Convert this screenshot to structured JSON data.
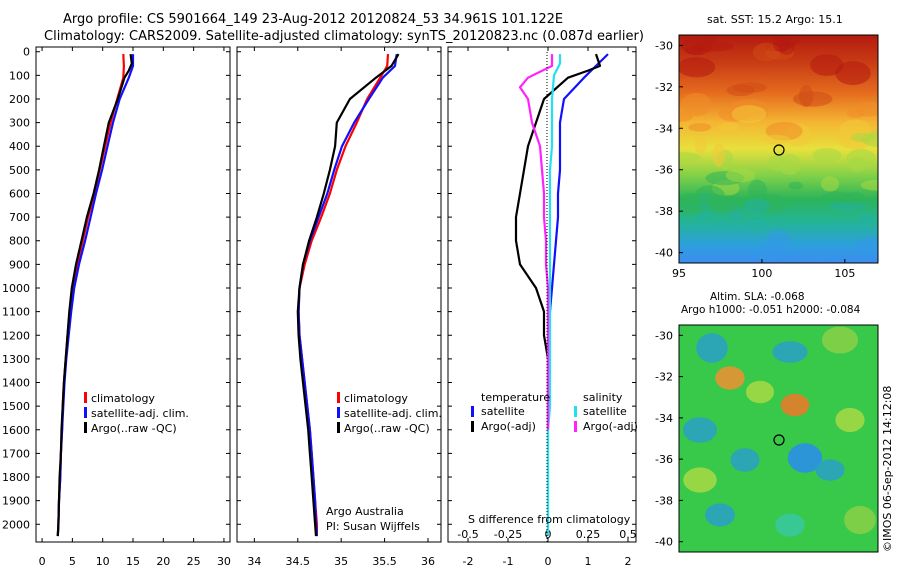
{
  "header": {
    "line1": "Argo profile: CS 5901664_149 23-Aug-2012 20120824_53 34.961S 101.122E",
    "line2": "Climatology: CARS2009. Satellite-adjusted climatology: synTS_20120823.nc (0.087d earlier)"
  },
  "colors": {
    "climatology": "#ff0000",
    "satellite": "#1010ff",
    "argo": "#000000",
    "argo_adj_salinity": "#ff22ff",
    "satellite_salinity": "#22e0f0"
  },
  "chart_data": [
    {
      "type": "line",
      "panel": "temperature",
      "xlim": [
        -1,
        31
      ],
      "ylim": [
        2075,
        -20
      ],
      "y_reversed": true,
      "x_ticks": [
        0,
        5,
        10,
        15,
        20,
        25,
        30
      ],
      "y_ticks": [
        0,
        100,
        200,
        300,
        400,
        500,
        600,
        700,
        800,
        900,
        1000,
        1100,
        1200,
        1300,
        1400,
        1500,
        1600,
        1700,
        1800,
        1900,
        2000
      ],
      "legend": [
        "climatology",
        "satellite-adj. clim.",
        "Argo(..raw -QC)"
      ],
      "series": [
        {
          "name": "climatology",
          "color": "#ff0000",
          "points": [
            [
              13.4,
              10
            ],
            [
              13.5,
              60
            ],
            [
              13.4,
              110
            ],
            [
              12.4,
              200
            ],
            [
              11.3,
              300
            ],
            [
              10.4,
              400
            ],
            [
              9.5,
              500
            ],
            [
              8.6,
              600
            ],
            [
              7.6,
              700
            ],
            [
              6.7,
              800
            ],
            [
              5.8,
              900
            ],
            [
              5.0,
              1000
            ],
            [
              4.6,
              1100
            ],
            [
              4.2,
              1200
            ],
            [
              3.9,
              1300
            ],
            [
              3.6,
              1400
            ],
            [
              3.4,
              1500
            ],
            [
              3.3,
              1600
            ],
            [
              3.1,
              1700
            ],
            [
              3.0,
              1800
            ],
            [
              2.8,
              1900
            ],
            [
              2.7,
              2000
            ],
            [
              2.6,
              2050
            ]
          ]
        },
        {
          "name": "satellite-adj. clim.",
          "color": "#1010ff",
          "points": [
            [
              15.0,
              10
            ],
            [
              15.0,
              60
            ],
            [
              14.3,
              110
            ],
            [
              12.8,
              200
            ],
            [
              11.7,
              300
            ],
            [
              10.8,
              400
            ],
            [
              9.9,
              500
            ],
            [
              8.9,
              600
            ],
            [
              8.0,
              700
            ],
            [
              7.1,
              800
            ],
            [
              6.1,
              900
            ],
            [
              5.3,
              1000
            ],
            [
              4.8,
              1100
            ],
            [
              4.4,
              1200
            ],
            [
              4.0,
              1300
            ],
            [
              3.7,
              1400
            ],
            [
              3.5,
              1500
            ],
            [
              3.3,
              1600
            ],
            [
              3.1,
              1700
            ],
            [
              3.0,
              1800
            ],
            [
              2.8,
              1900
            ],
            [
              2.7,
              2000
            ],
            [
              2.6,
              2050
            ]
          ]
        },
        {
          "name": "Argo(..raw -QC)",
          "color": "#000000",
          "points": [
            [
              14.6,
              10
            ],
            [
              14.8,
              50
            ],
            [
              14.3,
              80
            ],
            [
              13.6,
              110
            ],
            [
              12.5,
              200
            ],
            [
              11.0,
              300
            ],
            [
              10.2,
              400
            ],
            [
              9.4,
              500
            ],
            [
              8.5,
              600
            ],
            [
              7.4,
              700
            ],
            [
              6.5,
              800
            ],
            [
              5.6,
              900
            ],
            [
              4.9,
              1000
            ],
            [
              4.5,
              1100
            ],
            [
              4.2,
              1200
            ],
            [
              3.9,
              1300
            ],
            [
              3.6,
              1400
            ],
            [
              3.4,
              1500
            ],
            [
              3.2,
              1600
            ],
            [
              3.1,
              1700
            ],
            [
              2.9,
              1800
            ],
            [
              2.8,
              1900
            ],
            [
              2.7,
              2000
            ],
            [
              2.6,
              2050
            ]
          ]
        }
      ]
    },
    {
      "type": "line",
      "panel": "salinity",
      "xlim": [
        33.8,
        36.15
      ],
      "ylim": [
        2075,
        -20
      ],
      "y_reversed": true,
      "x_ticks": [
        34,
        34.5,
        35,
        35.5,
        36
      ],
      "legend": [
        "climatology",
        "satellite-adj. clim.",
        "Argo(..raw -QC)"
      ],
      "annotation": [
        "Argo Australia",
        "PI: Susan Wijffels"
      ],
      "series": [
        {
          "name": "climatology",
          "color": "#ff0000",
          "points": [
            [
              35.54,
              10
            ],
            [
              35.53,
              60
            ],
            [
              35.45,
              110
            ],
            [
              35.3,
              200
            ],
            [
              35.18,
              300
            ],
            [
              35.05,
              400
            ],
            [
              34.95,
              500
            ],
            [
              34.87,
              600
            ],
            [
              34.77,
              700
            ],
            [
              34.66,
              800
            ],
            [
              34.58,
              900
            ],
            [
              34.52,
              1000
            ],
            [
              34.51,
              1100
            ],
            [
              34.52,
              1200
            ],
            [
              34.55,
              1300
            ],
            [
              34.58,
              1400
            ],
            [
              34.61,
              1500
            ],
            [
              34.64,
              1600
            ],
            [
              34.66,
              1700
            ],
            [
              34.68,
              1800
            ],
            [
              34.7,
              1900
            ],
            [
              34.72,
              2000
            ],
            [
              34.72,
              2050
            ]
          ]
        },
        {
          "name": "satellite-adj. clim.",
          "color": "#1010ff",
          "points": [
            [
              35.64,
              10
            ],
            [
              35.62,
              60
            ],
            [
              35.48,
              110
            ],
            [
              35.32,
              200
            ],
            [
              35.15,
              300
            ],
            [
              35.01,
              400
            ],
            [
              34.92,
              500
            ],
            [
              34.84,
              600
            ],
            [
              34.74,
              700
            ],
            [
              34.64,
              800
            ],
            [
              34.56,
              900
            ],
            [
              34.52,
              1000
            ],
            [
              34.51,
              1100
            ],
            [
              34.52,
              1200
            ],
            [
              34.55,
              1300
            ],
            [
              34.58,
              1400
            ],
            [
              34.61,
              1500
            ],
            [
              34.64,
              1600
            ],
            [
              34.66,
              1700
            ],
            [
              34.68,
              1800
            ],
            [
              34.7,
              1900
            ],
            [
              34.71,
              2000
            ],
            [
              34.72,
              2050
            ]
          ]
        },
        {
          "name": "Argo(..raw -QC)",
          "color": "#000000",
          "points": [
            [
              35.66,
              10
            ],
            [
              35.58,
              60
            ],
            [
              35.4,
              110
            ],
            [
              35.1,
              200
            ],
            [
              34.95,
              300
            ],
            [
              34.93,
              400
            ],
            [
              34.87,
              500
            ],
            [
              34.8,
              600
            ],
            [
              34.72,
              700
            ],
            [
              34.63,
              800
            ],
            [
              34.56,
              900
            ],
            [
              34.52,
              1000
            ],
            [
              34.5,
              1100
            ],
            [
              34.51,
              1200
            ],
            [
              34.53,
              1300
            ],
            [
              34.56,
              1400
            ],
            [
              34.59,
              1500
            ],
            [
              34.62,
              1600
            ],
            [
              34.64,
              1700
            ],
            [
              34.66,
              1800
            ],
            [
              34.68,
              1900
            ],
            [
              34.7,
              2000
            ],
            [
              34.71,
              2050
            ]
          ]
        }
      ]
    },
    {
      "type": "line",
      "panel": "difference",
      "xlim": [
        -2.5,
        2.2
      ],
      "ylim": [
        2075,
        -20
      ],
      "y_reversed": true,
      "x_ticks": [
        -2,
        -1,
        0,
        1,
        2
      ],
      "x_ticks_top": [
        -0.5,
        -0.25,
        0,
        0.25,
        0.5
      ],
      "xlabel_top": "S difference from climatology",
      "legend_temperature": {
        "title": "temperature",
        "items": [
          "satellite",
          "Argo(-adj)"
        ]
      },
      "legend_salinity": {
        "title": "salinity",
        "items": [
          "satellite",
          "Argo(-adj)"
        ]
      },
      "series": [
        {
          "name": "temperature satellite",
          "color": "#1010ff",
          "points": [
            [
              1.5,
              10
            ],
            [
              1.2,
              60
            ],
            [
              0.9,
              110
            ],
            [
              0.4,
              200
            ],
            [
              0.3,
              300
            ],
            [
              0.3,
              400
            ],
            [
              0.3,
              500
            ],
            [
              0.25,
              600
            ],
            [
              0.25,
              700
            ],
            [
              0.2,
              800
            ],
            [
              0.15,
              900
            ],
            [
              0.1,
              1000
            ],
            [
              0.05,
              1100
            ],
            [
              0,
              1200
            ]
          ]
        },
        {
          "name": "temperature Argo(-adj)",
          "color": "#000000",
          "points": [
            [
              1.2,
              10
            ],
            [
              1.3,
              60
            ],
            [
              1.0,
              80
            ],
            [
              0.5,
              110
            ],
            [
              -0.1,
              200
            ],
            [
              -0.3,
              300
            ],
            [
              -0.5,
              400
            ],
            [
              -0.6,
              500
            ],
            [
              -0.7,
              600
            ],
            [
              -0.8,
              700
            ],
            [
              -0.8,
              800
            ],
            [
              -0.7,
              900
            ],
            [
              -0.3,
              1000
            ],
            [
              -0.1,
              1100
            ],
            [
              -0.1,
              1200
            ],
            [
              0,
              1300
            ],
            [
              0,
              1400
            ],
            [
              0,
              1500
            ],
            [
              0,
              1600
            ]
          ]
        },
        {
          "name": "salinity satellite",
          "color": "#22e0f0",
          "points": [
            [
              0.3,
              10
            ],
            [
              0.3,
              50
            ],
            [
              0.15,
              100
            ],
            [
              0.1,
              200
            ],
            [
              0.1,
              300
            ],
            [
              0.1,
              400
            ],
            [
              0.05,
              500
            ],
            [
              0.05,
              600
            ],
            [
              0.05,
              700
            ],
            [
              0.05,
              800
            ],
            [
              0.05,
              900
            ],
            [
              0.05,
              1000
            ],
            [
              0.05,
              1100
            ],
            [
              0.05,
              1200
            ],
            [
              0.05,
              1300
            ],
            [
              0.05,
              1400
            ],
            [
              0.05,
              1500
            ],
            [
              0,
              1600
            ],
            [
              0,
              1700
            ],
            [
              0,
              1800
            ],
            [
              0,
              1900
            ],
            [
              0,
              2000
            ],
            [
              0,
              2050
            ]
          ]
        },
        {
          "name": "salinity Argo(-adj)",
          "color": "#ff22ff",
          "points": [
            [
              0.1,
              10
            ],
            [
              0.1,
              60
            ],
            [
              -0.5,
              110
            ],
            [
              -0.7,
              150
            ],
            [
              -0.5,
              200
            ],
            [
              -0.4,
              300
            ],
            [
              -0.2,
              400
            ],
            [
              -0.15,
              500
            ],
            [
              -0.1,
              600
            ],
            [
              -0.1,
              700
            ],
            [
              -0.05,
              800
            ],
            [
              -0.05,
              900
            ],
            [
              0,
              1000
            ],
            [
              0,
              1100
            ],
            [
              0,
              1200
            ],
            [
              0,
              1300
            ],
            [
              0,
              1400
            ],
            [
              0,
              1500
            ],
            [
              0,
              1600
            ]
          ]
        }
      ]
    },
    {
      "type": "heatmap",
      "panel": "sst_map",
      "title": "sat. SST: 15.2  Argo: 15.1",
      "x_ticks": [
        95,
        100,
        105
      ],
      "y_ticks": [
        -30,
        -32,
        -34,
        -36,
        -38,
        -40
      ],
      "xlim": [
        95,
        107
      ],
      "ylim": [
        -40.5,
        -29.5
      ],
      "marker": {
        "lon": 101.1,
        "lat": -35.0
      }
    },
    {
      "type": "heatmap",
      "panel": "sla_map",
      "title_line1": "Altim. SLA: -0.068",
      "title_line2": "Argo h1000: -0.051 h2000: -0.084",
      "y_ticks": [
        -30,
        -32,
        -34,
        -36,
        -38,
        -40
      ],
      "xlim": [
        95,
        107
      ],
      "ylim": [
        -40.5,
        -29.5
      ],
      "marker": {
        "lon": 101.1,
        "lat": -35.0
      }
    }
  ],
  "footer_vertical": "©IMOS 06-Sep-2012 14:12:08"
}
